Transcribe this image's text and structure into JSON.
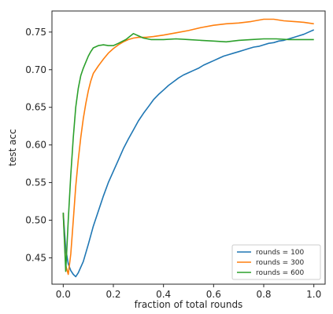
{
  "chart_data": {
    "type": "line",
    "xlabel": "fraction of total rounds",
    "ylabel": "test acc",
    "xlim": [
      -0.045,
      1.045
    ],
    "ylim": [
      0.415,
      0.778
    ],
    "xticks": [
      0.0,
      0.2,
      0.4,
      0.6,
      0.8,
      1.0
    ],
    "xtick_labels": [
      "0.0",
      "0.2",
      "0.4",
      "0.6",
      "0.8",
      "1.0"
    ],
    "yticks": [
      0.45,
      0.5,
      0.55,
      0.6,
      0.65,
      0.7,
      0.75
    ],
    "ytick_labels": [
      "0.45",
      "0.50",
      "0.55",
      "0.60",
      "0.65",
      "0.70",
      "0.75"
    ],
    "grid": false,
    "legend": {
      "placement": "lower-right"
    },
    "series": [
      {
        "name": "rounds = 100",
        "color": "#1f77b4",
        "x": [
          0.0,
          0.01,
          0.02,
          0.03,
          0.04,
          0.05,
          0.06,
          0.08,
          0.1,
          0.12,
          0.14,
          0.16,
          0.18,
          0.2,
          0.22,
          0.24,
          0.26,
          0.28,
          0.3,
          0.32,
          0.34,
          0.36,
          0.38,
          0.4,
          0.42,
          0.44,
          0.46,
          0.48,
          0.5,
          0.52,
          0.54,
          0.56,
          0.58,
          0.6,
          0.62,
          0.64,
          0.66,
          0.68,
          0.7,
          0.72,
          0.74,
          0.76,
          0.78,
          0.8,
          0.82,
          0.84,
          0.86,
          0.88,
          0.9,
          0.92,
          0.94,
          0.96,
          0.98,
          1.0
        ],
        "values": [
          0.51,
          0.462,
          0.442,
          0.433,
          0.428,
          0.425,
          0.43,
          0.445,
          0.468,
          0.492,
          0.512,
          0.532,
          0.55,
          0.565,
          0.58,
          0.595,
          0.608,
          0.62,
          0.632,
          0.642,
          0.651,
          0.66,
          0.667,
          0.673,
          0.679,
          0.684,
          0.689,
          0.693,
          0.696,
          0.699,
          0.702,
          0.706,
          0.709,
          0.712,
          0.715,
          0.718,
          0.72,
          0.722,
          0.724,
          0.726,
          0.728,
          0.73,
          0.731,
          0.733,
          0.735,
          0.736,
          0.738,
          0.739,
          0.741,
          0.743,
          0.745,
          0.747,
          0.75,
          0.753
        ]
      },
      {
        "name": "rounds = 300",
        "color": "#ff7f0e",
        "x": [
          0.0,
          0.01,
          0.02,
          0.03,
          0.04,
          0.05,
          0.06,
          0.07,
          0.08,
          0.09,
          0.1,
          0.11,
          0.12,
          0.14,
          0.16,
          0.18,
          0.2,
          0.22,
          0.24,
          0.26,
          0.28,
          0.3,
          0.33,
          0.36,
          0.4,
          0.45,
          0.5,
          0.55,
          0.6,
          0.65,
          0.7,
          0.75,
          0.8,
          0.84,
          0.88,
          0.92,
          0.96,
          1.0
        ],
        "values": [
          0.51,
          0.44,
          0.428,
          0.455,
          0.5,
          0.545,
          0.58,
          0.61,
          0.635,
          0.655,
          0.672,
          0.685,
          0.695,
          0.705,
          0.714,
          0.722,
          0.728,
          0.733,
          0.737,
          0.74,
          0.742,
          0.743,
          0.743,
          0.744,
          0.746,
          0.749,
          0.752,
          0.756,
          0.759,
          0.761,
          0.762,
          0.764,
          0.767,
          0.767,
          0.765,
          0.764,
          0.763,
          0.761
        ]
      },
      {
        "name": "rounds = 600",
        "color": "#2ca02c",
        "x": [
          0.0,
          0.01,
          0.02,
          0.03,
          0.04,
          0.05,
          0.06,
          0.07,
          0.08,
          0.09,
          0.1,
          0.11,
          0.12,
          0.14,
          0.16,
          0.18,
          0.2,
          0.22,
          0.25,
          0.28,
          0.3,
          0.32,
          0.35,
          0.4,
          0.45,
          0.5,
          0.55,
          0.6,
          0.65,
          0.7,
          0.75,
          0.8,
          0.85,
          0.9,
          0.95,
          1.0
        ],
        "values": [
          0.51,
          0.432,
          0.5,
          0.56,
          0.61,
          0.65,
          0.675,
          0.692,
          0.702,
          0.71,
          0.718,
          0.724,
          0.729,
          0.732,
          0.733,
          0.732,
          0.732,
          0.735,
          0.74,
          0.748,
          0.745,
          0.742,
          0.74,
          0.74,
          0.741,
          0.74,
          0.739,
          0.738,
          0.737,
          0.739,
          0.74,
          0.741,
          0.741,
          0.74,
          0.74,
          0.74
        ]
      }
    ]
  }
}
